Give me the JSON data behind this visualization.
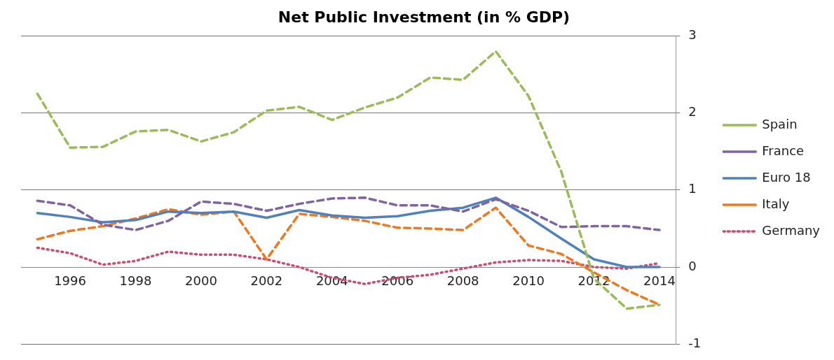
{
  "chart_data": {
    "type": "line",
    "title": "Net Public Investment (in % GDP)",
    "x": [
      1995,
      1996,
      1997,
      1998,
      1999,
      2000,
      2001,
      2002,
      2003,
      2004,
      2005,
      2006,
      2007,
      2008,
      2009,
      2010,
      2011,
      2012,
      2013,
      2014
    ],
    "xlim": [
      1994.5,
      2014.5
    ],
    "xticks": [
      1996,
      1998,
      2000,
      2002,
      2004,
      2006,
      2008,
      2010,
      2012,
      2014
    ],
    "ylim": [
      -1,
      3
    ],
    "yticks": [
      -1,
      0,
      1,
      2,
      3
    ],
    "grid": "y",
    "legend": "right",
    "marker": "none",
    "series": [
      {
        "name": "Spain",
        "color": "#9bbb59",
        "line_style": "dashed",
        "values": [
          2.25,
          1.55,
          1.56,
          1.76,
          1.78,
          1.63,
          1.75,
          2.03,
          2.08,
          1.91,
          2.07,
          2.2,
          2.46,
          2.43,
          2.8,
          2.22,
          1.24,
          -0.15,
          -0.54,
          -0.49
        ]
      },
      {
        "name": "France",
        "color": "#8064a2",
        "line_style": "dashed",
        "values": [
          0.86,
          0.8,
          0.55,
          0.48,
          0.6,
          0.85,
          0.82,
          0.73,
          0.82,
          0.89,
          0.9,
          0.8,
          0.8,
          0.72,
          0.88,
          0.73,
          0.52,
          0.53,
          0.53,
          0.48
        ]
      },
      {
        "name": "Euro 18",
        "color": "#4f81bd",
        "line_style": "solid",
        "values": [
          0.7,
          0.65,
          0.58,
          0.61,
          0.72,
          0.7,
          0.72,
          0.64,
          0.74,
          0.67,
          0.64,
          0.66,
          0.73,
          0.77,
          0.9,
          0.65,
          0.37,
          0.1,
          0.0,
          0.0
        ]
      },
      {
        "name": "Italy",
        "color": "#f07820",
        "line_style": "dashed",
        "values": [
          0.36,
          0.47,
          0.53,
          0.63,
          0.75,
          0.68,
          0.72,
          0.1,
          0.69,
          0.65,
          0.6,
          0.51,
          0.5,
          0.48,
          0.77,
          0.28,
          0.17,
          -0.07,
          -0.3,
          -0.49
        ]
      },
      {
        "name": "Germany",
        "color": "#d04a6e",
        "line_style": "dotted",
        "values": [
          0.25,
          0.18,
          0.03,
          0.08,
          0.2,
          0.16,
          0.16,
          0.1,
          0.0,
          -0.14,
          -0.22,
          -0.14,
          -0.1,
          -0.02,
          0.06,
          0.09,
          0.08,
          0.0,
          -0.02,
          0.05
        ]
      }
    ]
  }
}
